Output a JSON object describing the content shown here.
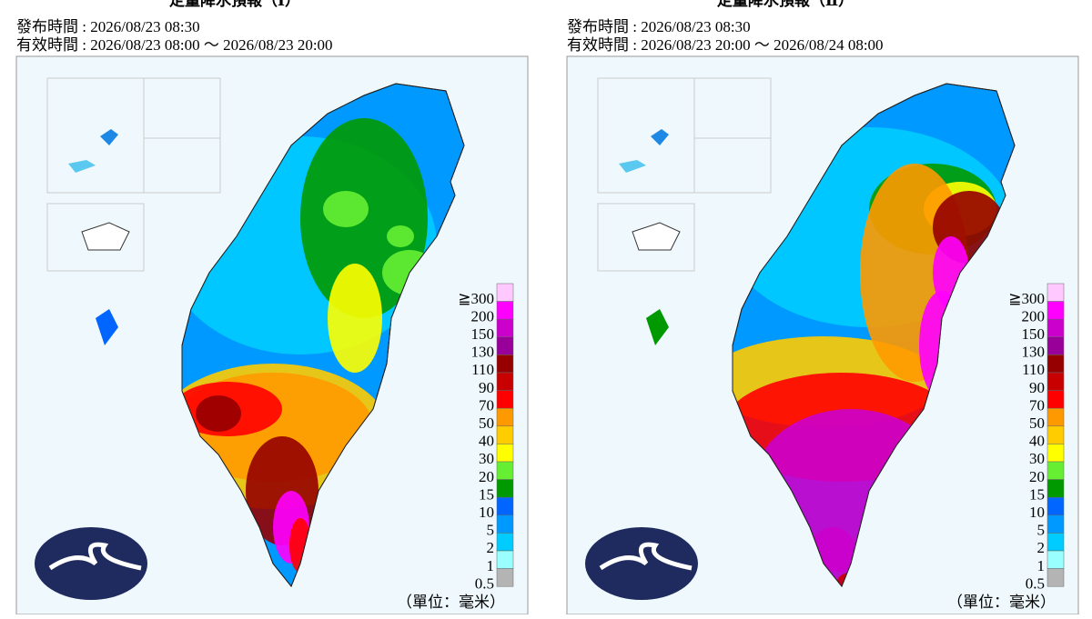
{
  "panels": [
    {
      "title": "定量降水預報（Ⅰ）",
      "issued": "發布時間 : 2026/08/23 08:30",
      "valid": "有效時間 : 2026/08/23 08:00 ～ 2026/08/23 20:00",
      "unit": "（單位：毫米）"
    },
    {
      "title": "定量降水預報（Ⅱ）",
      "issued": "發布時間 : 2026/08/23 08:30",
      "valid": "有效時間 : 2026/08/23 20:00 ～ 2026/08/24 08:00",
      "unit": "（單位：毫米）"
    }
  ],
  "legend": [
    {
      "label": "≧300",
      "color": "#ffc8ff"
    },
    {
      "label": "200",
      "color": "#ff00ff"
    },
    {
      "label": "150",
      "color": "#cc00cc"
    },
    {
      "label": "130",
      "color": "#990099"
    },
    {
      "label": "110",
      "color": "#960000"
    },
    {
      "label": "90",
      "color": "#c80000"
    },
    {
      "label": "70",
      "color": "#ff0000"
    },
    {
      "label": "50",
      "color": "#ff9900"
    },
    {
      "label": "40",
      "color": "#ffcc00"
    },
    {
      "label": "30",
      "color": "#ffff00"
    },
    {
      "label": "20",
      "color": "#66ee33"
    },
    {
      "label": "15",
      "color": "#009900"
    },
    {
      "label": "10",
      "color": "#0066ff"
    },
    {
      "label": "5",
      "color": "#0099ff"
    },
    {
      "label": "2",
      "color": "#00ccff"
    },
    {
      "label": "1",
      "color": "#99ffff"
    },
    {
      "label": "0.5",
      "color": "#b4b4b4"
    }
  ]
}
